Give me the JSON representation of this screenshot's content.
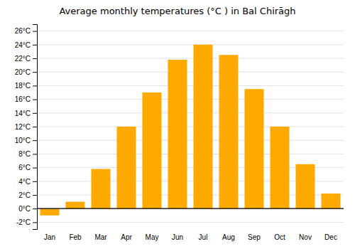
{
  "chart_data": {
    "type": "bar",
    "title": "Average monthly temperatures (°C ) in Bal Chirāgh",
    "categories": [
      "Jan",
      "Feb",
      "Mar",
      "Apr",
      "May",
      "Jun",
      "Jul",
      "Aug",
      "Sep",
      "Oct",
      "Nov",
      "Dec"
    ],
    "values": [
      -1.0,
      1.0,
      5.8,
      12.0,
      17.0,
      21.8,
      24.0,
      22.5,
      17.5,
      12.0,
      6.5,
      2.2
    ],
    "color": "#FFAA00",
    "ylim": [
      -3,
      27
    ],
    "yticks": [
      {
        "value": -2,
        "label": "-2°C"
      },
      {
        "value": 0,
        "label": "0°C"
      },
      {
        "value": 2,
        "label": "2°C"
      },
      {
        "value": 4,
        "label": "4°C"
      },
      {
        "value": 6,
        "label": "6°C"
      },
      {
        "value": 8,
        "label": "8°C"
      },
      {
        "value": 10,
        "label": "10°C"
      },
      {
        "value": 12,
        "label": "12°C"
      },
      {
        "value": 14,
        "label": "14°C"
      },
      {
        "value": 16,
        "label": "16°C"
      },
      {
        "value": 18,
        "label": "18°C"
      },
      {
        "value": 20,
        "label": "20°C"
      },
      {
        "value": 22,
        "label": "22°C"
      },
      {
        "value": 24,
        "label": "24°C"
      },
      {
        "value": 26,
        "label": "26°C"
      }
    ],
    "grid": true
  }
}
